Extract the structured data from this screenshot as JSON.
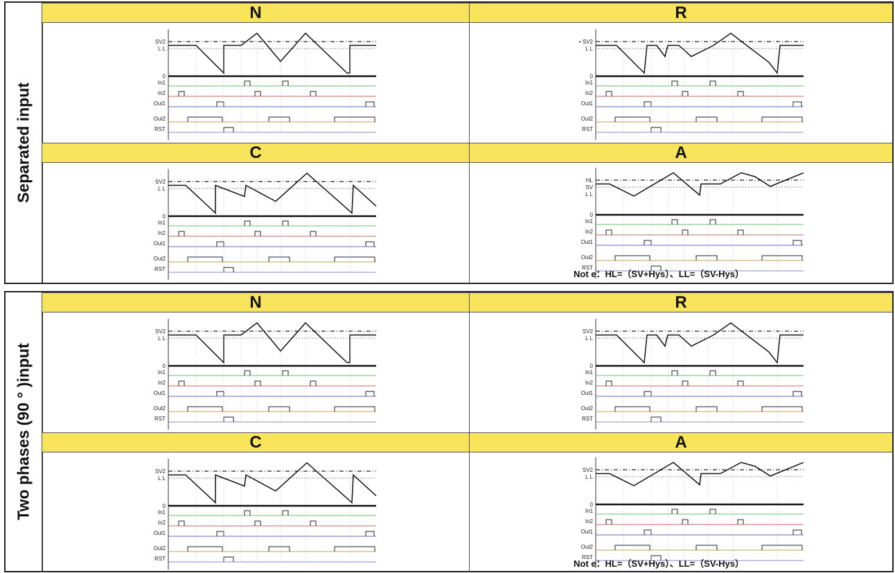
{
  "sections": [
    {
      "side_label": "Separated input",
      "panels": [
        {
          "head": "N",
          "labels": {
            "top": "SV2",
            "mid": "L L"
          },
          "note": ""
        },
        {
          "head": "R",
          "labels": {
            "top": "• SV2",
            "mid": "L L"
          },
          "note": ""
        },
        {
          "head": "C",
          "labels": {
            "top": "SV2",
            "mid": "L L"
          },
          "note": ""
        },
        {
          "head": "A",
          "labels": {
            "top": "HL",
            "mid": "SV",
            "low": "L L"
          },
          "note": "Not e：HL=（SV+Hys）、LL=（SV-Hys）"
        }
      ]
    },
    {
      "side_label": "Two phases (90 ° )input",
      "panels": [
        {
          "head": "N",
          "labels": {
            "top": "SV2",
            "mid": "L L"
          },
          "note": ""
        },
        {
          "head": "R",
          "labels": {
            "top": "SV2",
            "mid": "L L"
          },
          "note": ""
        },
        {
          "head": "C",
          "labels": {
            "top": "SV2",
            "mid": "L L"
          },
          "note": ""
        },
        {
          "head": "A",
          "labels": {
            "top": "SV2",
            "mid": "L L"
          },
          "note": "Not e：HL=（SV+Hys）、LL=（SV-Hys）"
        }
      ]
    }
  ],
  "signal_labels": {
    "zero": "0",
    "in1": "In1",
    "in2": "In2",
    "out1": "Out1",
    "out2": "Out2",
    "rst": "RST"
  },
  "colors": {
    "header": "#f7e35c",
    "in1_line": "#6fbf6f",
    "in2_line": "#c86464",
    "out1_line": "#6464c8",
    "out2_line": "#c8a050",
    "rst_line": "#8888cc"
  }
}
